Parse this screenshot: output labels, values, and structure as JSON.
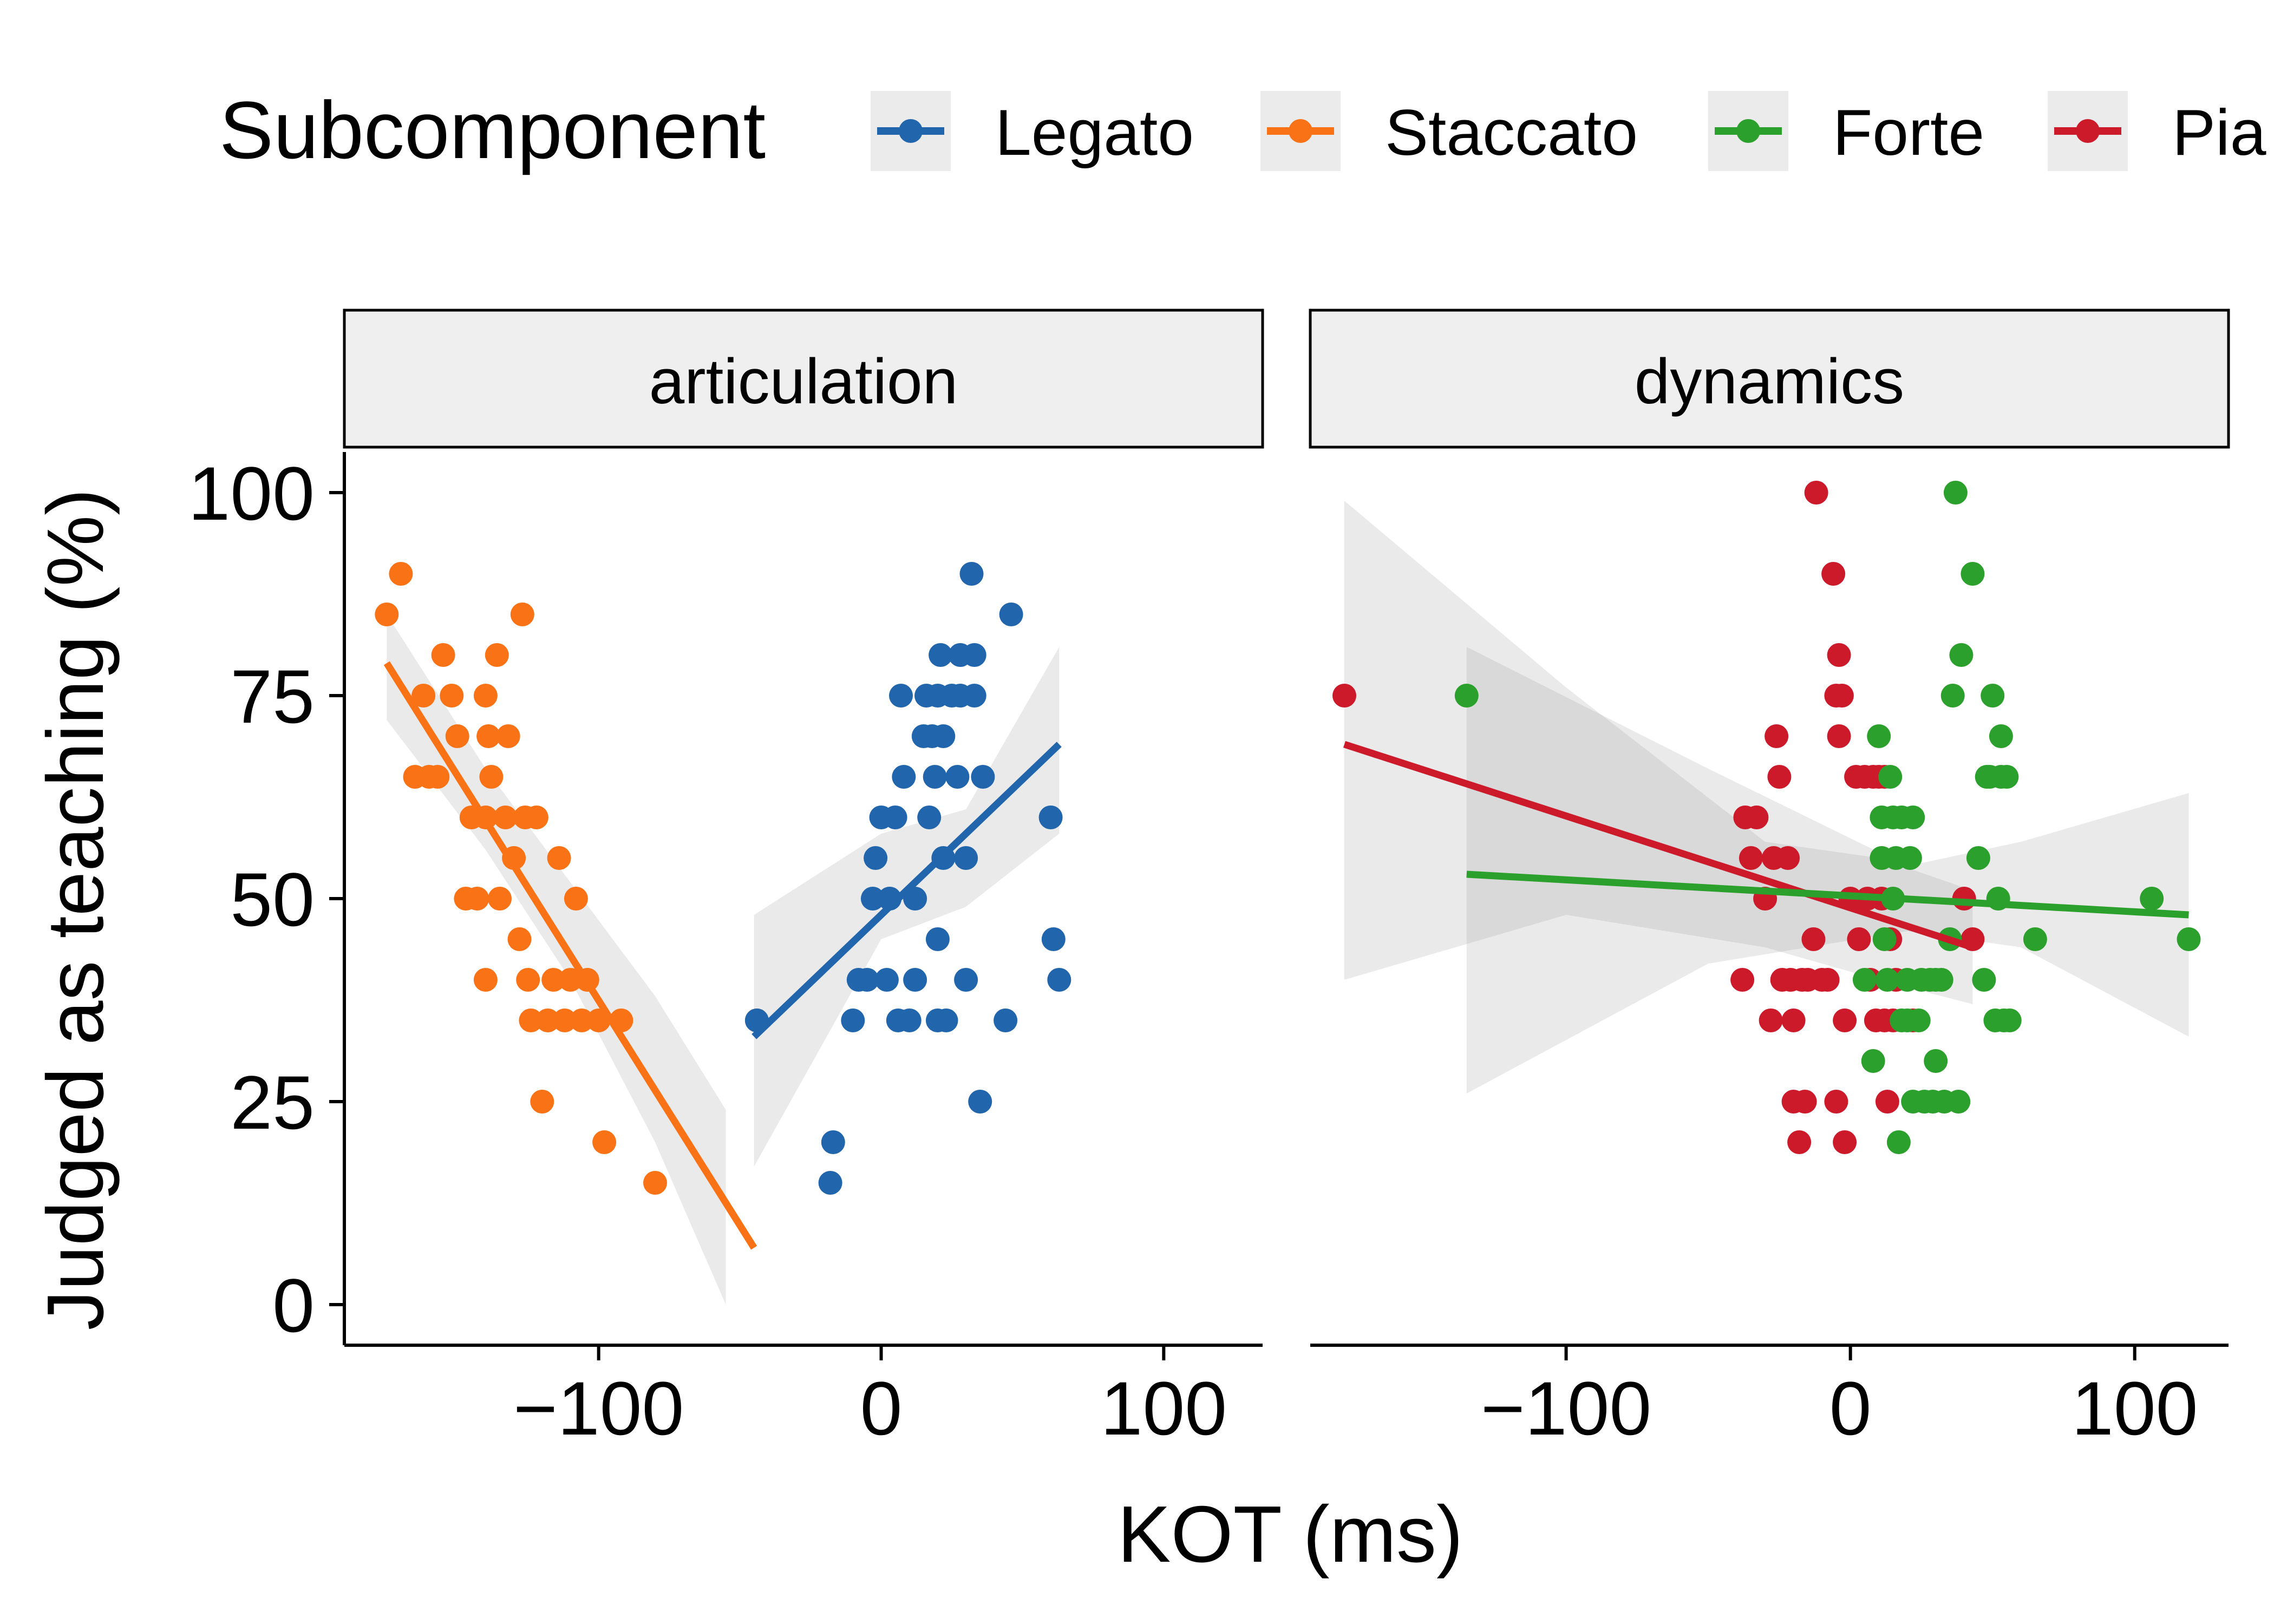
{
  "chart_data": {
    "type": "scatter",
    "xlabel": "KOT (ms)",
    "ylabel": "Judged as teaching (%)",
    "ylim": [
      -5,
      105
    ],
    "yticks": [
      0,
      25,
      50,
      75,
      100
    ],
    "xticks": [
      -100,
      0,
      100
    ],
    "grid": false,
    "legend": {
      "title": "Subcomponent",
      "position": "top",
      "entries": [
        {
          "name": "Legato",
          "color": "#2166ac"
        },
        {
          "name": "Staccato",
          "color": "#f97316"
        },
        {
          "name": "Forte",
          "color": "#2ca02c"
        },
        {
          "name": "Pia",
          "color": "#cc1a2b"
        }
      ]
    },
    "panels": [
      {
        "label": "articulation",
        "xlim": [
          -190,
          135
        ],
        "series": [
          {
            "name": "Staccato",
            "color": "#f97316",
            "points": [
              [
                -175,
                85
              ],
              [
                -170,
                90
              ],
              [
                -165,
                65
              ],
              [
                -162,
                75
              ],
              [
                -160,
                65
              ],
              [
                -157,
                65
              ],
              [
                -155,
                80
              ],
              [
                -152,
                75
              ],
              [
                -150,
                70
              ],
              [
                -145,
                60
              ],
              [
                -143,
                50
              ],
              [
                -140,
                75
              ],
              [
                -140,
                60
              ],
              [
                -139,
                70
              ],
              [
                -138,
                65
              ],
              [
                -136,
                80
              ],
              [
                -135,
                50
              ],
              [
                -133,
                60
              ],
              [
                -132,
                70
              ],
              [
                -130,
                55
              ],
              [
                -128,
                45
              ],
              [
                -127,
                85
              ],
              [
                -126,
                60
              ],
              [
                -125,
                40
              ],
              [
                -124,
                35
              ],
              [
                -122,
                60
              ],
              [
                -120,
                25
              ],
              [
                -118,
                35
              ],
              [
                -116,
                40
              ],
              [
                -114,
                55
              ],
              [
                -112,
                35
              ],
              [
                -110,
                40
              ],
              [
                -108,
                50
              ],
              [
                -106,
                35
              ],
              [
                -104,
                40
              ],
              [
                -100,
                35
              ],
              [
                -98,
                20
              ],
              [
                -92,
                35
              ],
              [
                -80,
                15
              ],
              [
                -140,
                40
              ],
              [
                -147,
                50
              ],
              [
                -44,
                35
              ]
            ],
            "fit": {
              "x": [
                -175,
                -45
              ],
              "y": [
                79,
                7
              ]
            },
            "ci": {
              "x": [
                -175,
                -140,
                -110,
                -80,
                -55
              ],
              "upper": [
                85,
                66,
                52,
                38,
                24
              ],
              "lower": [
                72,
                56,
                40,
                20,
                0
              ]
            }
          },
          {
            "name": "Legato",
            "color": "#2166ac",
            "points": [
              [
                -44,
                35
              ],
              [
                -17,
                20
              ],
              [
                -18,
                15
              ],
              [
                -10,
                35
              ],
              [
                -8,
                40
              ],
              [
                -5,
                40
              ],
              [
                -3,
                50
              ],
              [
                -2,
                55
              ],
              [
                0,
                60
              ],
              [
                2,
                40
              ],
              [
                3,
                50
              ],
              [
                5,
                60
              ],
              [
                6,
                35
              ],
              [
                7,
                75
              ],
              [
                8,
                65
              ],
              [
                10,
                35
              ],
              [
                12,
                40
              ],
              [
                12,
                50
              ],
              [
                15,
                70
              ],
              [
                16,
                75
              ],
              [
                17,
                60
              ],
              [
                18,
                70
              ],
              [
                19,
                65
              ],
              [
                20,
                35
              ],
              [
                20,
                45
              ],
              [
                20,
                75
              ],
              [
                21,
                80
              ],
              [
                22,
                55
              ],
              [
                22,
                70
              ],
              [
                23,
                35
              ],
              [
                25,
                75
              ],
              [
                27,
                65
              ],
              [
                28,
                75
              ],
              [
                28,
                80
              ],
              [
                30,
                55
              ],
              [
                30,
                40
              ],
              [
                32,
                90
              ],
              [
                33,
                75
              ],
              [
                33,
                80
              ],
              [
                35,
                25
              ],
              [
                36,
                65
              ],
              [
                44,
                35
              ],
              [
                46,
                85
              ],
              [
                60,
                60
              ],
              [
                61,
                45
              ],
              [
                63,
                40
              ]
            ],
            "fit": {
              "x": [
                -45,
                63
              ],
              "y": [
                33,
                69
              ]
            },
            "ci": {
              "x": [
                -45,
                0,
                30,
                63
              ],
              "upper": [
                48,
                58,
                61,
                81
              ],
              "lower": [
                17,
                45,
                49,
                58
              ]
            }
          }
        ]
      },
      {
        "label": "dynamics",
        "xlim": [
          -190,
          133
        ],
        "series": [
          {
            "name": "Pia",
            "color": "#cc1a2b",
            "points": [
              [
                -178,
                75
              ],
              [
                -38,
                40
              ],
              [
                -37,
                60
              ],
              [
                -35,
                55
              ],
              [
                -33,
                60
              ],
              [
                -30,
                50
              ],
              [
                -28,
                35
              ],
              [
                -27,
                55
              ],
              [
                -26,
                70
              ],
              [
                -25,
                65
              ],
              [
                -24,
                40
              ],
              [
                -22,
                55
              ],
              [
                -21,
                40
              ],
              [
                -20,
                25
              ],
              [
                -20,
                35
              ],
              [
                -18,
                20
              ],
              [
                -17,
                40
              ],
              [
                -16,
                25
              ],
              [
                -15,
                40
              ],
              [
                -13,
                45
              ],
              [
                -12,
                100
              ],
              [
                -10,
                40
              ],
              [
                -8,
                40
              ],
              [
                -6,
                90
              ],
              [
                -5,
                75
              ],
              [
                -5,
                25
              ],
              [
                -4,
                70
              ],
              [
                -4,
                80
              ],
              [
                -3,
                75
              ],
              [
                -2,
                20
              ],
              [
                -2,
                35
              ],
              [
                0,
                50
              ],
              [
                2,
                65
              ],
              [
                3,
                45
              ],
              [
                5,
                65
              ],
              [
                6,
                50
              ],
              [
                7,
                40
              ],
              [
                8,
                65
              ],
              [
                9,
                35
              ],
              [
                10,
                65
              ],
              [
                11,
                50
              ],
              [
                12,
                65
              ],
              [
                12,
                35
              ],
              [
                13,
                25
              ],
              [
                14,
                45
              ],
              [
                15,
                35
              ],
              [
                16,
                40
              ],
              [
                22,
                35
              ],
              [
                40,
                50
              ],
              [
                43,
                45
              ]
            ],
            "fit": {
              "x": [
                -178,
                43
              ],
              "y": [
                69,
                44
              ]
            },
            "ci": {
              "x": [
                -178,
                -100,
                -30,
                10,
                43
              ],
              "upper": [
                99,
                76,
                57,
                55,
                51
              ],
              "lower": [
                40,
                48,
                44,
                40,
                37
              ]
            }
          },
          {
            "name": "Forte",
            "color": "#2ca02c",
            "points": [
              [
                -135,
                75
              ],
              [
                5,
                40
              ],
              [
                8,
                30
              ],
              [
                10,
                70
              ],
              [
                11,
                55
              ],
              [
                11,
                60
              ],
              [
                12,
                45
              ],
              [
                13,
                40
              ],
              [
                14,
                65
              ],
              [
                15,
                50
              ],
              [
                15,
                60
              ],
              [
                16,
                55
              ],
              [
                17,
                20
              ],
              [
                18,
                35
              ],
              [
                18,
                60
              ],
              [
                20,
                35
              ],
              [
                20,
                40
              ],
              [
                21,
                55
              ],
              [
                22,
                60
              ],
              [
                22,
                25
              ],
              [
                24,
                35
              ],
              [
                25,
                40
              ],
              [
                26,
                25
              ],
              [
                28,
                40
              ],
              [
                29,
                25
              ],
              [
                30,
                30
              ],
              [
                30,
                40
              ],
              [
                32,
                40
              ],
              [
                33,
                25
              ],
              [
                35,
                45
              ],
              [
                36,
                75
              ],
              [
                37,
                100
              ],
              [
                38,
                25
              ],
              [
                39,
                80
              ],
              [
                43,
                90
              ],
              [
                45,
                55
              ],
              [
                47,
                40
              ],
              [
                48,
                65
              ],
              [
                49,
                65
              ],
              [
                50,
                75
              ],
              [
                51,
                35
              ],
              [
                52,
                50
              ],
              [
                53,
                70
              ],
              [
                53,
                65
              ],
              [
                54,
                35
              ],
              [
                55,
                65
              ],
              [
                56,
                35
              ],
              [
                65,
                45
              ],
              [
                106,
                50
              ],
              [
                119,
                45
              ]
            ],
            "fit": {
              "x": [
                -135,
                119
              ],
              "y": [
                53,
                48
              ]
            },
            "ci": {
              "x": [
                -135,
                -50,
                20,
                60,
                119
              ],
              "upper": [
                81,
                66,
                54,
                57,
                63
              ],
              "lower": [
                26,
                42,
                46,
                44,
                33
              ]
            }
          }
        ]
      }
    ]
  }
}
